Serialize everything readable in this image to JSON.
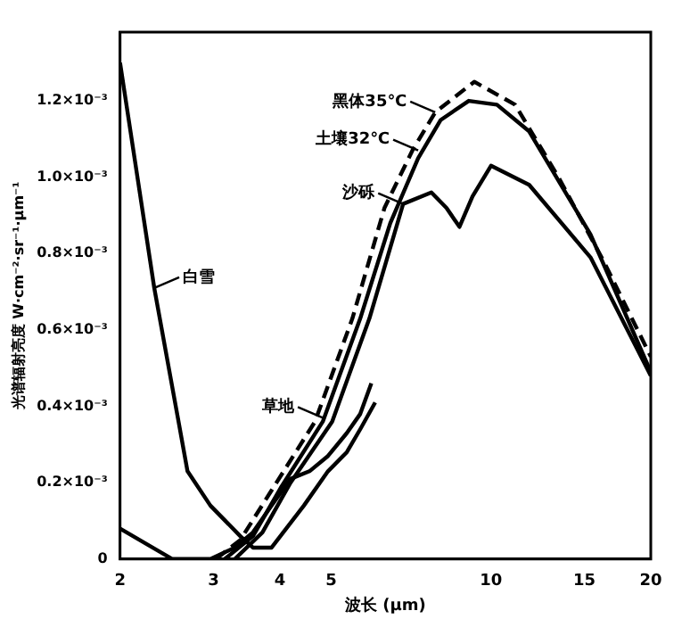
{
  "chart_data": {
    "type": "line",
    "xlabel": "波长 (μm)",
    "ylabel": "光谱辐射亮度 W·cm⁻²·sr⁻¹·μm⁻¹",
    "log": "x",
    "grid": false,
    "legend": false,
    "marker": "none",
    "xlim": [
      2,
      20
    ],
    "xticks": [
      2,
      3,
      4,
      5,
      10,
      15,
      20
    ],
    "ylim": [
      0,
      0.00138
    ],
    "yticks": [
      0,
      {
        "value": 0.0002,
        "label": "0.2×10⁻³"
      },
      {
        "value": 0.0004,
        "label": "0.4×10⁻³"
      },
      {
        "value": 0.0006,
        "label": "0.6×10⁻³"
      },
      {
        "value": 0.0008,
        "label": "0.8×10⁻³"
      },
      {
        "value": 0.001,
        "label": "1.0×10⁻³"
      },
      {
        "value": 0.0012,
        "label": "1.2×10⁻³"
      }
    ],
    "series": [
      {
        "color": "#000000",
        "x": [
          2,
          2.32,
          2.57,
          2.68,
          2.96,
          3.37,
          3.56,
          3.86,
          4.44,
          4.93,
          5.35,
          5.67,
          6.05
        ],
        "values": [
          0.0013,
          0.00071,
          0.00037,
          0.00023,
          0.00014,
          6e-05,
          3e-05,
          3e-05,
          0.00014,
          0.00023,
          0.00028,
          0.00034,
          0.00041
        ]
      },
      {
        "color": "#000000",
        "x": [
          2,
          2.51,
          2.96,
          3.29,
          3.56,
          3.86,
          4.19,
          4.55,
          4.93,
          5.35,
          5.67,
          5.95
        ],
        "values": [
          8e-05,
          0,
          0,
          3e-05,
          7e-05,
          0.00014,
          0.00021,
          0.00023,
          0.00027,
          0.00033,
          0.00038,
          0.00046
        ]
      },
      {
        "color": "#000000",
        "line_style": "dashed",
        "x": [
          3.03,
          3.37,
          3.86,
          4.66,
          5.48,
          6.3,
          7.11,
          7.85,
          9.3,
          11.1,
          13.4,
          16.3,
          20
        ],
        "values": [
          0,
          5e-05,
          0.00018,
          0.00036,
          0.00063,
          0.00092,
          0.00107,
          0.00117,
          0.00125,
          0.00119,
          0.001,
          0.00078,
          0.00053
        ]
      },
      {
        "color": "#000000",
        "x": [
          3.15,
          3.56,
          4.03,
          4.82,
          5.67,
          6.46,
          7.29,
          8.04,
          9.08,
          10.26,
          11.8,
          15.4,
          20
        ],
        "values": [
          0,
          6e-05,
          0.00019,
          0.00036,
          0.00063,
          0.00088,
          0.00105,
          0.00115,
          0.0012,
          0.00119,
          0.00112,
          0.00085,
          0.00049
        ]
      },
      {
        "color": "#000000",
        "x": [
          3.29,
          3.71,
          4.19,
          5.02,
          5.9,
          6.83,
          7.72,
          8.24,
          8.72,
          9.23,
          10.0,
          11.8,
          15.4,
          20
        ],
        "values": [
          0,
          7e-05,
          0.0002,
          0.00036,
          0.00063,
          0.00093,
          0.00096,
          0.00092,
          0.00087,
          0.00095,
          0.00103,
          0.00098,
          0.00079,
          0.00048
        ]
      }
    ],
    "annotations": [
      {
        "text": "白雪",
        "x": 2.32,
        "y": 0.00071
      },
      {
        "text": "草地",
        "x": 4.82,
        "y": 0.00037
      },
      {
        "text": "黑体35℃",
        "x": 7.85,
        "y": 0.00117
      },
      {
        "text": "土壤32℃",
        "x": 7.29,
        "y": 0.00107
      },
      {
        "text": "沙砾",
        "x": 6.83,
        "y": 0.00093
      }
    ]
  }
}
